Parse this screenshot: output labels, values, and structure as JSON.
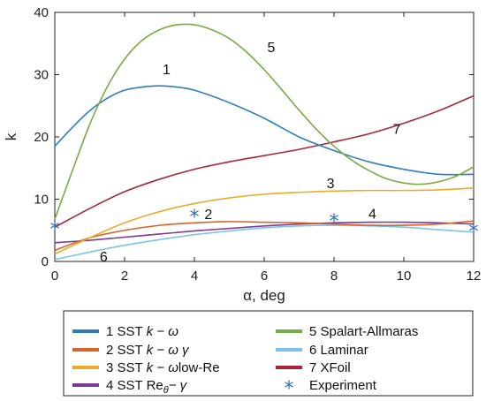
{
  "chart_data": {
    "type": "line",
    "xlabel": "α, deg",
    "ylabel": "k",
    "xlim": [
      0,
      12
    ],
    "ylim": [
      0,
      40
    ],
    "xticks": [
      0,
      2,
      4,
      6,
      8,
      10,
      12
    ],
    "yticks": [
      0,
      10,
      20,
      30,
      40
    ],
    "grid": false,
    "legend_position": "bottom",
    "series": [
      {
        "id": "1",
        "name": "1 SST k − ω",
        "color": "#2e7ebf",
        "label_at": [
          3.2,
          30.8
        ],
        "x": [
          0,
          0.5,
          1,
          1.5,
          2,
          2.5,
          3,
          3.5,
          4,
          5,
          6,
          7,
          8,
          9,
          10,
          11,
          12
        ],
        "y": [
          18.5,
          21.5,
          24.2,
          26.2,
          27.5,
          28.0,
          28.2,
          28.0,
          27.5,
          25.5,
          23.0,
          20.0,
          17.8,
          16.0,
          14.8,
          14.0,
          14.0
        ]
      },
      {
        "id": "2",
        "name": "2 SST k − ω γ",
        "color": "#d4642a",
        "label_at": [
          4.4,
          7.5
        ],
        "x": [
          0,
          1,
          2,
          3,
          4,
          5,
          6,
          7,
          8,
          9,
          10,
          11,
          12
        ],
        "y": [
          1.8,
          3.8,
          5.0,
          5.8,
          6.2,
          6.4,
          6.3,
          6.2,
          6.0,
          5.8,
          5.8,
          6.0,
          6.5
        ]
      },
      {
        "id": "3",
        "name": "3 SST k − ωlow-Re",
        "color": "#eaaa2a",
        "label_at": [
          7.9,
          12.5
        ],
        "x": [
          0,
          1,
          2,
          3,
          4,
          5,
          6,
          7,
          8,
          9,
          10,
          11,
          12
        ],
        "y": [
          1.2,
          3.8,
          6.2,
          8.0,
          9.3,
          10.2,
          10.8,
          11.1,
          11.3,
          11.4,
          11.4,
          11.5,
          11.8
        ]
      },
      {
        "id": "4",
        "name": "4 SST Re θ − γ",
        "color": "#7a3a96",
        "label_at": [
          9.1,
          7.6
        ],
        "x": [
          0,
          1,
          2,
          3,
          4,
          5,
          6,
          7,
          8,
          9,
          10,
          11,
          12
        ],
        "y": [
          3.0,
          3.4,
          3.9,
          4.4,
          4.9,
          5.3,
          5.7,
          6.0,
          6.2,
          6.3,
          6.3,
          6.2,
          6.0
        ]
      },
      {
        "id": "5",
        "name": "5 Spalart-Allmaras",
        "color": "#77ab43",
        "label_at": [
          6.2,
          34.3
        ],
        "x": [
          0,
          0.5,
          1,
          1.5,
          2,
          2.5,
          3,
          3.5,
          4,
          4.5,
          5,
          5.5,
          6,
          6.5,
          7,
          7.5,
          8,
          8.5,
          9,
          9.5,
          10,
          10.5,
          11,
          11.5,
          12
        ],
        "y": [
          6.8,
          14.5,
          22.0,
          28.0,
          32.5,
          35.5,
          37.2,
          38.0,
          38.0,
          37.2,
          35.8,
          33.6,
          30.8,
          27.6,
          24.3,
          21.2,
          18.5,
          16.3,
          14.6,
          13.3,
          12.6,
          12.4,
          12.8,
          13.7,
          15.2
        ]
      },
      {
        "id": "6",
        "name": "6 Laminar",
        "color": "#7cc3e8",
        "label_at": [
          1.4,
          0.7
        ],
        "x": [
          0,
          1,
          2,
          3,
          4,
          5,
          6,
          7,
          8,
          9,
          10,
          11,
          12
        ],
        "y": [
          0.3,
          1.5,
          2.6,
          3.5,
          4.3,
          4.9,
          5.4,
          5.7,
          5.8,
          5.7,
          5.5,
          5.1,
          4.7
        ]
      },
      {
        "id": "7",
        "name": "7 XFoil",
        "color": "#a8263a",
        "label_at": [
          9.8,
          21.2
        ],
        "x": [
          0,
          1,
          2,
          3,
          4,
          5,
          6,
          7,
          8,
          9,
          10,
          11,
          12
        ],
        "y": [
          5.5,
          8.5,
          11.2,
          13.2,
          14.8,
          16.0,
          17.0,
          18.0,
          19.2,
          20.5,
          22.2,
          24.2,
          26.6
        ]
      }
    ],
    "experiment": {
      "name": "Experiment",
      "color": "#2e6fb5",
      "x": [
        0,
        4,
        8,
        12
      ],
      "y": [
        5.5,
        7.5,
        6.8,
        5.2
      ]
    }
  }
}
